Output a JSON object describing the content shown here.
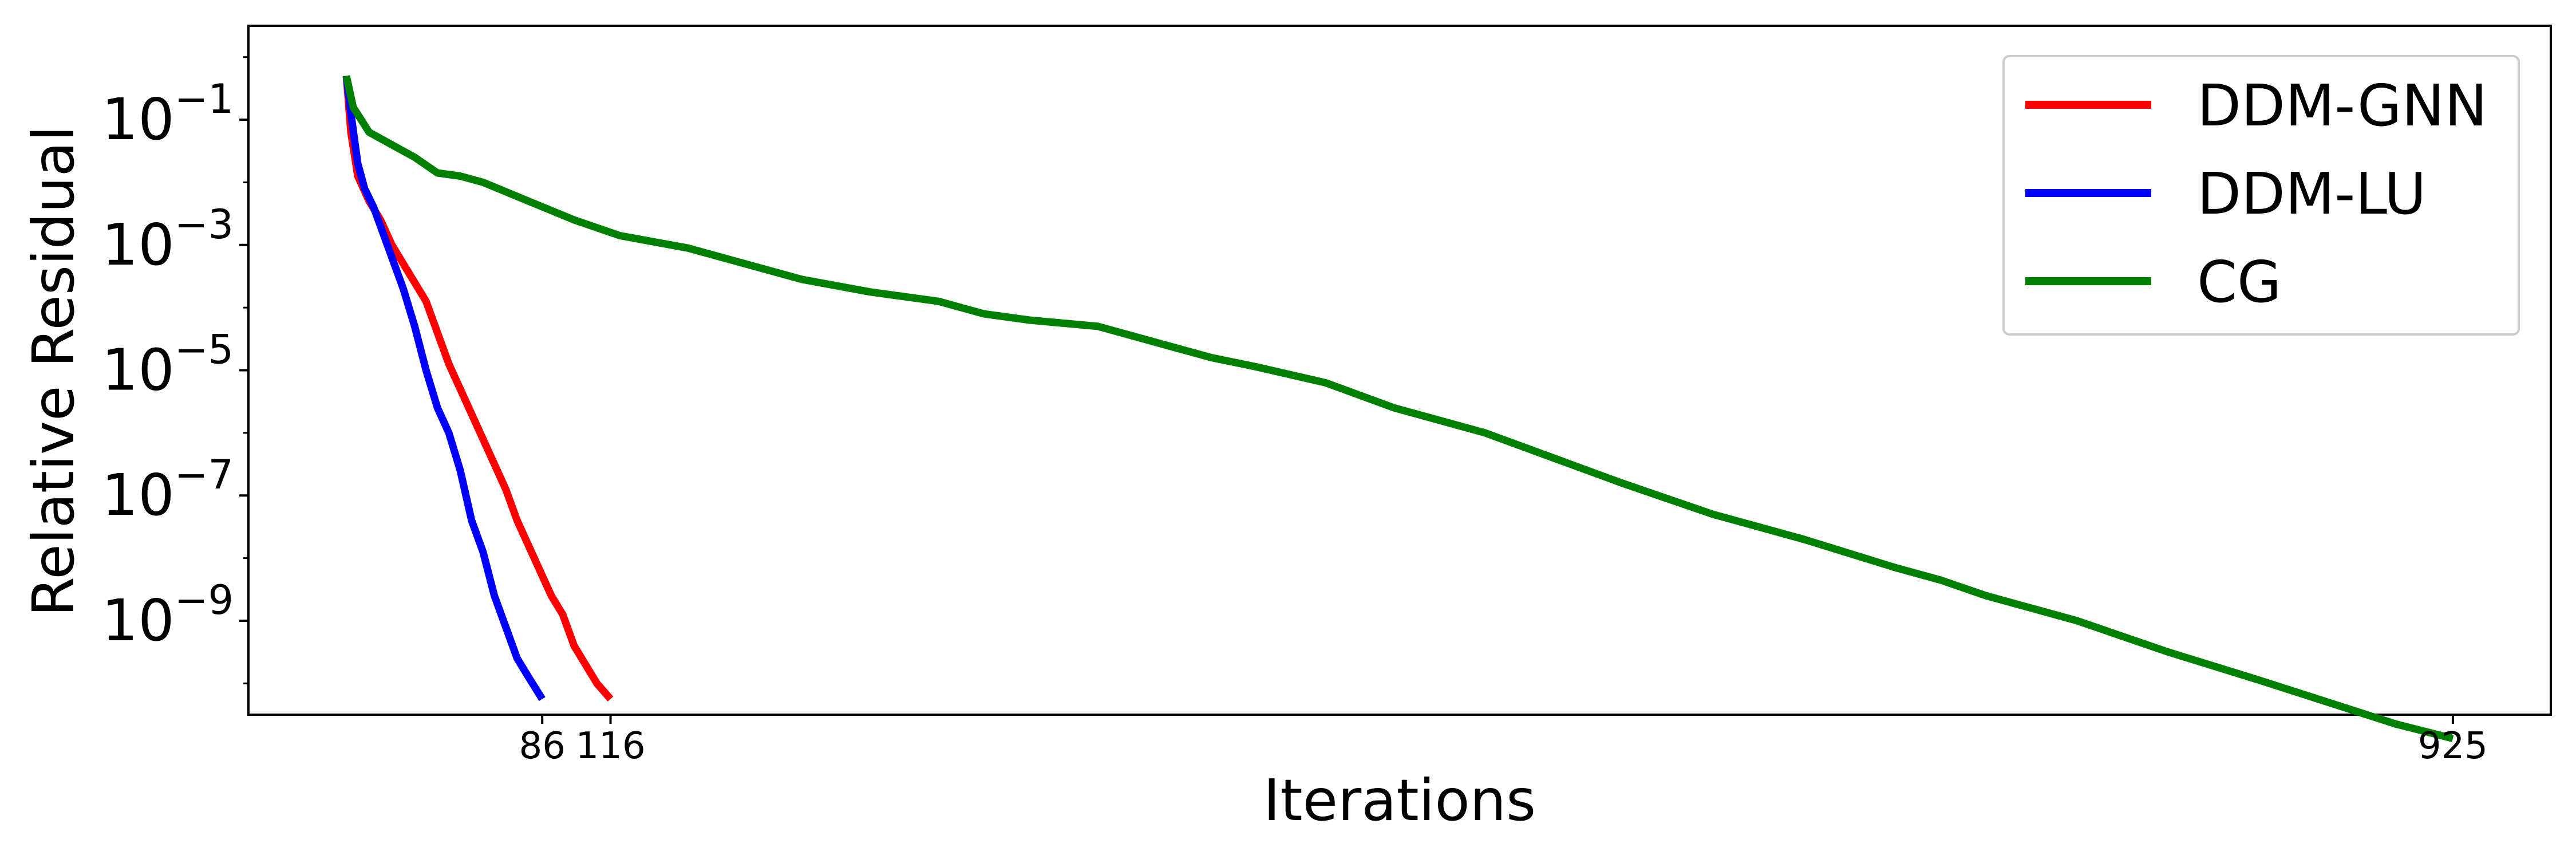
{
  "chart_data": {
    "type": "line",
    "title": "",
    "xlabel": "Iterations",
    "ylabel": "Relative Residual",
    "xlim": [
      -43,
      968
    ],
    "y_log_range": [
      -10.5,
      0.5
    ],
    "y_scale": "log",
    "x_ticks": [
      {
        "value": 86,
        "label": "86"
      },
      {
        "value": 116,
        "label": "116"
      },
      {
        "value": 925,
        "label": "925"
      }
    ],
    "y_ticks": [
      {
        "exp": -1,
        "base": "10",
        "sup": "−1"
      },
      {
        "exp": -3,
        "base": "10",
        "sup": "−3"
      },
      {
        "exp": -5,
        "base": "10",
        "sup": "−5"
      },
      {
        "exp": -7,
        "base": "10",
        "sup": "−7"
      },
      {
        "exp": -9,
        "base": "10",
        "sup": "−9"
      }
    ],
    "grid": false,
    "legend_position": "top-right",
    "series": [
      {
        "name": "DDM-GNN",
        "color": "#ff0000",
        "x": [
          0,
          2,
          5,
          10,
          15,
          20,
          25,
          30,
          35,
          40,
          45,
          50,
          55,
          60,
          65,
          70,
          75,
          80,
          85,
          90,
          95,
          100,
          105,
          110,
          116
        ],
        "log10_y": [
          -0.3,
          -1.2,
          -1.9,
          -2.3,
          -2.6,
          -3.0,
          -3.3,
          -3.6,
          -3.9,
          -4.4,
          -4.9,
          -5.3,
          -5.7,
          -6.1,
          -6.5,
          -6.9,
          -7.4,
          -7.8,
          -8.2,
          -8.6,
          -8.9,
          -9.4,
          -9.7,
          -10.0,
          -10.25
        ]
      },
      {
        "name": "DDM-LU",
        "color": "#0000ff",
        "x": [
          0,
          2,
          5,
          8,
          12,
          16,
          20,
          25,
          30,
          35,
          40,
          45,
          50,
          55,
          60,
          65,
          70,
          75,
          80,
          86
        ],
        "log10_y": [
          -0.3,
          -0.9,
          -1.7,
          -2.1,
          -2.4,
          -2.8,
          -3.2,
          -3.7,
          -4.3,
          -5.0,
          -5.6,
          -6.0,
          -6.6,
          -7.4,
          -7.9,
          -8.6,
          -9.1,
          -9.6,
          -9.9,
          -10.25
        ]
      },
      {
        "name": "CG",
        "color": "#008000",
        "x": [
          0,
          3,
          10,
          20,
          30,
          40,
          50,
          60,
          80,
          100,
          120,
          150,
          180,
          200,
          230,
          260,
          280,
          300,
          330,
          360,
          380,
          400,
          430,
          460,
          500,
          530,
          560,
          600,
          640,
          680,
          700,
          720,
          760,
          800,
          840,
          870,
          900,
          925
        ],
        "log10_y": [
          -0.3,
          -0.8,
          -1.2,
          -1.4,
          -1.6,
          -1.85,
          -1.9,
          -2.0,
          -2.3,
          -2.6,
          -2.85,
          -3.05,
          -3.35,
          -3.55,
          -3.75,
          -3.9,
          -4.1,
          -4.2,
          -4.3,
          -4.6,
          -4.8,
          -4.95,
          -5.2,
          -5.6,
          -6.0,
          -6.4,
          -6.8,
          -7.3,
          -7.7,
          -8.15,
          -8.35,
          -8.6,
          -9.0,
          -9.5,
          -9.95,
          -10.3,
          -10.65,
          -10.88
        ]
      }
    ],
    "legend": [
      {
        "label": "DDM-GNN",
        "color": "#ff0000"
      },
      {
        "label": "DDM-LU",
        "color": "#0000ff"
      },
      {
        "label": "CG",
        "color": "#008000"
      }
    ]
  }
}
